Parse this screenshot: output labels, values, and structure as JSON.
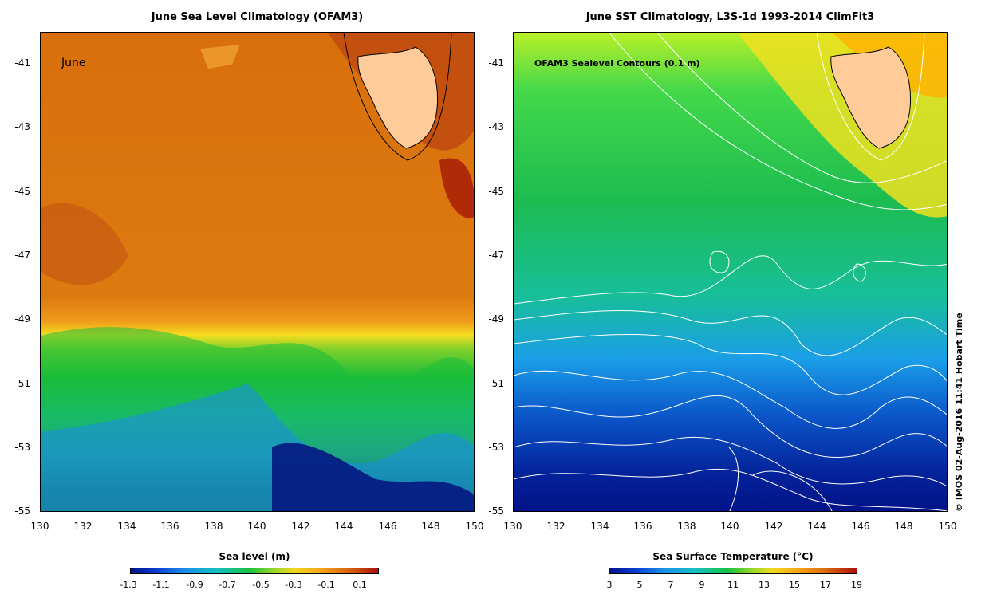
{
  "left_panel": {
    "title": "June Sea Level Climatology (OFAM3)",
    "month_label": "June",
    "colorbar_title": "Sea level (m)",
    "colorbar_ticks": [
      "-1.3",
      "-1.1",
      "-0.9",
      "-0.7",
      "-0.5",
      "-0.3",
      "-0.1",
      "0.1"
    ]
  },
  "right_panel": {
    "title": "June SST Climatology, L3S-1d 1993-2014 ClimFit3",
    "contour_label": "OFAM3 Sealevel Contours (0.1 m)",
    "colorbar_title": "Sea Surface Temperature (°C)",
    "colorbar_ticks": [
      "3",
      "5",
      "7",
      "9",
      "11",
      "13",
      "15",
      "17",
      "19"
    ]
  },
  "axes": {
    "lat_ticks": [
      "-41",
      "-43",
      "-45",
      "-47",
      "-49",
      "-51",
      "-53",
      "-55"
    ],
    "lon_ticks": [
      "130",
      "132",
      "134",
      "136",
      "138",
      "140",
      "142",
      "144",
      "146",
      "148",
      "150"
    ]
  },
  "credit": "© IMOS 02-Aug-2016 11:41 Hobart Time",
  "colors": {
    "land": "#ffcc99",
    "sea_level_high": "#b83a10",
    "sea_level_mid": "#e07b10",
    "sea_level_low": "#000088",
    "sst_warm": "#ffcc00",
    "sst_mid": "#22bb44",
    "sst_cold": "#000088"
  }
}
